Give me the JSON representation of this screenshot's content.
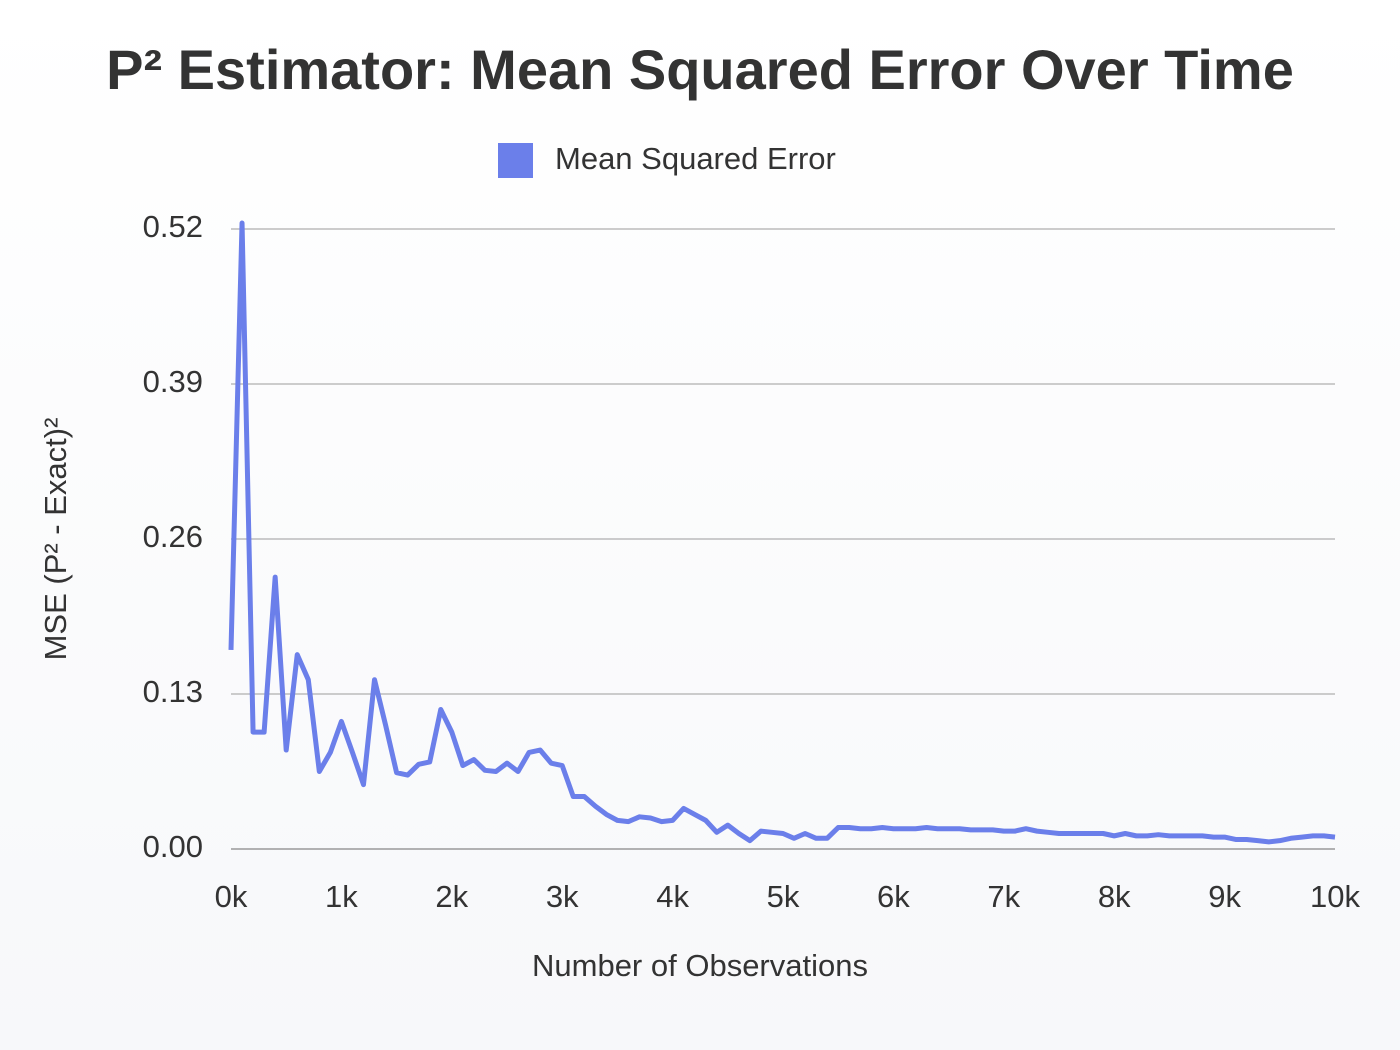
{
  "chart_data": {
    "type": "line",
    "title": "P² Estimator: Mean Squared Error Over Time",
    "x_label": "Number of Observations",
    "y_label": "MSE (P² - Exact)²",
    "series": [
      {
        "name": "Mean Squared Error",
        "color": "#6b7fea",
        "values": [
          0.167,
          0.525,
          0.098,
          0.098,
          0.228,
          0.083,
          0.163,
          0.142,
          0.065,
          0.081,
          0.107,
          0.081,
          0.054,
          0.142,
          0.104,
          0.064,
          0.062,
          0.071,
          0.073,
          0.117,
          0.098,
          0.07,
          0.075,
          0.066,
          0.065,
          0.072,
          0.065,
          0.081,
          0.083,
          0.072,
          0.07,
          0.044,
          0.044,
          0.036,
          0.029,
          0.024,
          0.023,
          0.027,
          0.026,
          0.023,
          0.024,
          0.034,
          0.029,
          0.024,
          0.014,
          0.02,
          0.013,
          0.007,
          0.015,
          0.014,
          0.013,
          0.009,
          0.013,
          0.009,
          0.009,
          0.018,
          0.018,
          0.017,
          0.017,
          0.018,
          0.017,
          0.017,
          0.017,
          0.018,
          0.017,
          0.017,
          0.017,
          0.016,
          0.016,
          0.016,
          0.015,
          0.015,
          0.017,
          0.015,
          0.014,
          0.013,
          0.013,
          0.013,
          0.013,
          0.013,
          0.011,
          0.013,
          0.011,
          0.011,
          0.012,
          0.011,
          0.011,
          0.011,
          0.011,
          0.01,
          0.01,
          0.008,
          0.008,
          0.007,
          0.006,
          0.007,
          0.009,
          0.01,
          0.011,
          0.011,
          0.01
        ]
      }
    ],
    "x": [
      0,
      100,
      200,
      300,
      400,
      500,
      600,
      700,
      800,
      900,
      1000,
      1100,
      1200,
      1300,
      1400,
      1500,
      1600,
      1700,
      1800,
      1900,
      2000,
      2100,
      2200,
      2300,
      2400,
      2500,
      2600,
      2700,
      2800,
      2900,
      3000,
      3100,
      3200,
      3300,
      3400,
      3500,
      3600,
      3700,
      3800,
      3900,
      4000,
      4100,
      4200,
      4300,
      4400,
      4500,
      4600,
      4700,
      4800,
      4900,
      5000,
      5100,
      5200,
      5300,
      5400,
      5500,
      5600,
      5700,
      5800,
      5900,
      6000,
      6100,
      6200,
      6300,
      6400,
      6500,
      6600,
      6700,
      6800,
      6900,
      7000,
      7100,
      7200,
      7300,
      7400,
      7500,
      7600,
      7700,
      7800,
      7900,
      8000,
      8100,
      8200,
      8300,
      8400,
      8500,
      8600,
      8700,
      8800,
      8900,
      9000,
      9100,
      9200,
      9300,
      9400,
      9500,
      9600,
      9700,
      9800,
      9900,
      10000
    ],
    "xlim": [
      0,
      10000
    ],
    "xticks": [
      {
        "value": 0,
        "label": "0k"
      },
      {
        "value": 1000,
        "label": "1k"
      },
      {
        "value": 2000,
        "label": "2k"
      },
      {
        "value": 3000,
        "label": "3k"
      },
      {
        "value": 4000,
        "label": "4k"
      },
      {
        "value": 5000,
        "label": "5k"
      },
      {
        "value": 6000,
        "label": "6k"
      },
      {
        "value": 7000,
        "label": "7k"
      },
      {
        "value": 8000,
        "label": "8k"
      },
      {
        "value": 9000,
        "label": "9k"
      },
      {
        "value": 10000,
        "label": "10k"
      }
    ],
    "ylim": [
      0,
      0.52
    ],
    "yticks": [
      {
        "value": 0,
        "label": "0.00"
      },
      0.13,
      0.26,
      0.39,
      0.52
    ],
    "grid": true
  }
}
